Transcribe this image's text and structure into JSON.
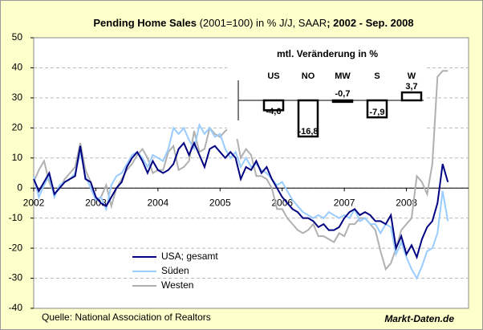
{
  "chart_data": {
    "type": "line",
    "title": [
      "Pending Home Sales",
      " (2001=100) in % J/J, SAAR",
      "; 2002 - Sep. 2008"
    ],
    "x": [
      2002,
      2002.083,
      2002.167,
      2002.25,
      2002.333,
      2002.417,
      2002.5,
      2002.583,
      2002.667,
      2002.75,
      2002.833,
      2002.917,
      2003,
      2003.083,
      2003.167,
      2003.25,
      2003.333,
      2003.417,
      2003.5,
      2003.583,
      2003.667,
      2003.75,
      2003.833,
      2003.917,
      2004,
      2004.083,
      2004.167,
      2004.25,
      2004.333,
      2004.417,
      2004.5,
      2004.583,
      2004.667,
      2004.75,
      2004.833,
      2004.917,
      2005,
      2005.083,
      2005.167,
      2005.25,
      2005.333,
      2005.417,
      2005.5,
      2005.583,
      2005.667,
      2005.75,
      2005.833,
      2005.917,
      2006,
      2006.083,
      2006.167,
      2006.25,
      2006.333,
      2006.417,
      2006.5,
      2006.583,
      2006.667,
      2006.75,
      2006.833,
      2006.917,
      2007,
      2007.083,
      2007.167,
      2007.25,
      2007.333,
      2007.417,
      2007.5,
      2007.583,
      2007.667,
      2007.75,
      2007.833,
      2007.917,
      2008,
      2008.083,
      2008.167,
      2008.25,
      2008.333,
      2008.417,
      2008.5,
      2008.583,
      2008.667
    ],
    "series": [
      {
        "name": "USA; gesamt",
        "color": "#000080",
        "values": [
          3,
          -1,
          2,
          5,
          -2,
          0,
          2,
          3,
          4,
          14,
          3,
          2,
          -3,
          -5,
          -6,
          -3,
          0,
          2,
          7,
          10,
          12,
          9,
          5,
          9,
          6,
          5,
          6,
          8,
          13,
          15,
          11,
          15,
          11,
          7,
          13,
          14,
          12,
          10,
          12,
          10,
          3,
          7,
          6,
          9,
          5,
          7,
          3,
          0,
          -3,
          -5,
          -7,
          -8,
          -10,
          -10,
          -11,
          -13,
          -12,
          -14,
          -14,
          -13,
          -10,
          -8,
          -7,
          -9,
          -8,
          -9,
          -11,
          -11,
          -12,
          -9,
          -20,
          -16,
          -22,
          -19,
          -23,
          -17,
          -13,
          -11,
          -5,
          8,
          2
        ]
      },
      {
        "name": "Süden",
        "color": "#99ccff",
        "values": [
          4,
          -3,
          1,
          4,
          -3,
          1,
          2,
          3,
          5,
          12,
          4,
          0,
          -4,
          -3,
          -7,
          1,
          4,
          5,
          8,
          11,
          12,
          10,
          7,
          11,
          10,
          9,
          13,
          20,
          18,
          20,
          16,
          13,
          21,
          18,
          20,
          17,
          18,
          13,
          10,
          12,
          7,
          10,
          7,
          8,
          6,
          5,
          3,
          1,
          2,
          -1,
          -4,
          -6,
          -8,
          -9,
          -10,
          -9,
          -10,
          -8,
          -9,
          -10,
          -9,
          -10,
          -7,
          -11,
          -10,
          -12,
          -12,
          -15,
          -12,
          -13,
          -22,
          -18,
          -23,
          -27,
          -30,
          -26,
          -21,
          -20,
          -15,
          -1,
          -11
        ]
      },
      {
        "name": "Westen",
        "color": "#b0b0b0",
        "values": [
          2,
          6,
          9,
          2,
          -2,
          0,
          3,
          5,
          7,
          15,
          6,
          2,
          -4,
          -3,
          1,
          -6,
          0,
          3,
          6,
          8,
          11,
          13,
          10,
          5,
          6,
          6,
          12,
          14,
          6,
          7,
          9,
          19,
          12,
          13,
          20,
          18,
          17,
          19,
          20,
          19,
          10,
          13,
          11,
          4,
          4,
          3,
          0,
          -7,
          -7,
          -10,
          -12,
          -14,
          -15,
          -14,
          -12,
          -16,
          -16,
          -17,
          -18,
          -15,
          -16,
          -12,
          -12,
          -10,
          -10,
          -12,
          -14,
          -21,
          -27,
          -25,
          -20,
          -14,
          -12,
          -10,
          4,
          2,
          -2,
          8,
          37,
          39,
          39
        ]
      }
    ],
    "xlim": [
      2002,
      2009
    ],
    "xticks": [
      2002,
      2003,
      2004,
      2005,
      2006,
      2007,
      2008
    ],
    "ylim": [
      -40,
      50
    ],
    "yticks": [
      -40,
      -30,
      -20,
      -10,
      0,
      10,
      20,
      30,
      40,
      50
    ],
    "grid": true,
    "inset": {
      "type": "bar",
      "title": "mtl. Veränderung in %",
      "categories": [
        "US",
        "NO",
        "MW",
        "S",
        "W"
      ],
      "values": [
        -4.6,
        -16.8,
        -0.7,
        -7.9,
        3.7
      ],
      "value_labels": [
        "-4,6",
        "-16,8",
        "-0,7",
        "-7,9",
        "3,7"
      ]
    },
    "source": "Quelle: National Association of Realtors",
    "brand": "Markt-Daten.de"
  }
}
